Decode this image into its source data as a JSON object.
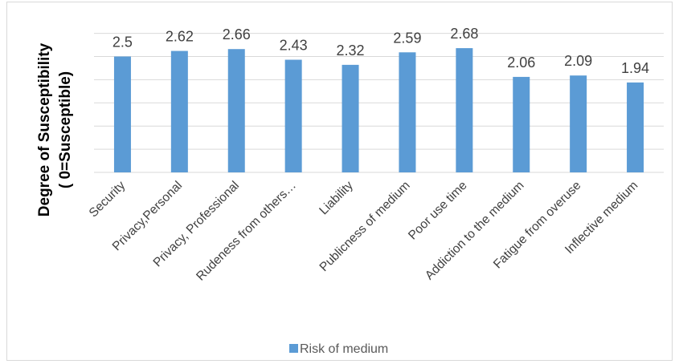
{
  "chart_data": {
    "type": "bar",
    "title": "",
    "xlabel": "",
    "ylabel_line1": "Degree of Susceptibility",
    "ylabel_line2": "( 0=Susceptible)",
    "ylim": [
      0,
      3.2
    ],
    "grid": true,
    "y_tick_labels_shown": false,
    "legend_position": "bottom",
    "bar_color": "#5b9bd5",
    "categories": [
      "Security",
      "Privacy,Personal",
      "Privacy, Professional",
      "Rudeness from others…",
      "Liability",
      "Publicness of medium",
      "Poor use time",
      "Addiction to the medium",
      "Fatigue from overuse",
      "Inflective medium"
    ],
    "series": [
      {
        "name": "Risk of medium",
        "values": [
          2.5,
          2.62,
          2.66,
          2.43,
          2.32,
          2.59,
          2.68,
          2.06,
          2.09,
          1.94
        ],
        "labels": [
          "2.5",
          "2.62",
          "2.66",
          "2.43",
          "2.32",
          "2.59",
          "2.68",
          "2.06",
          "2.09",
          "1.94"
        ]
      }
    ]
  }
}
